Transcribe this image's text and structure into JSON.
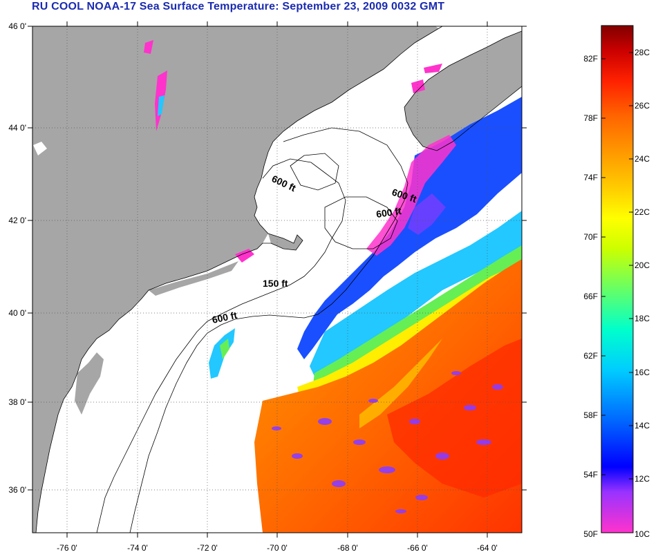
{
  "title": "RU COOL  NOAA-17  Sea Surface Temperature:  September 23, 2009 0032 GMT",
  "map": {
    "land_color": "#a6a6a6",
    "water_color": "#ffffff",
    "lat_labels": [
      "46 0'",
      "44 0'",
      "42 0'",
      "40 0'",
      "38 0'",
      "36 0'"
    ],
    "lon_labels": [
      "-76 0'",
      "-74 0'",
      "-72 0'",
      "-70 0'",
      "-68 0'",
      "-66 0'",
      "-64 0'"
    ],
    "depth_labels": [
      "600 ft",
      "600 ft",
      "600 ft",
      "150 ft",
      "600 ft"
    ]
  },
  "colorbar": {
    "fahrenheit_labels": [
      "82F",
      "78F",
      "74F",
      "70F",
      "66F",
      "62F",
      "58F",
      "54F",
      "50F"
    ],
    "celsius_labels": [
      "28C",
      "26C",
      "24C",
      "22C",
      "20C",
      "18C",
      "16C",
      "14C",
      "12C",
      "10C"
    ],
    "colors": [
      "#ff33cc",
      "#9933ff",
      "#0000ff",
      "#0066ff",
      "#00ccff",
      "#00ffcc",
      "#66ff66",
      "#ccff00",
      "#ffff00",
      "#ffcc00",
      "#ff9900",
      "#ff6600",
      "#ff2200",
      "#cc0000",
      "#800000"
    ]
  }
}
